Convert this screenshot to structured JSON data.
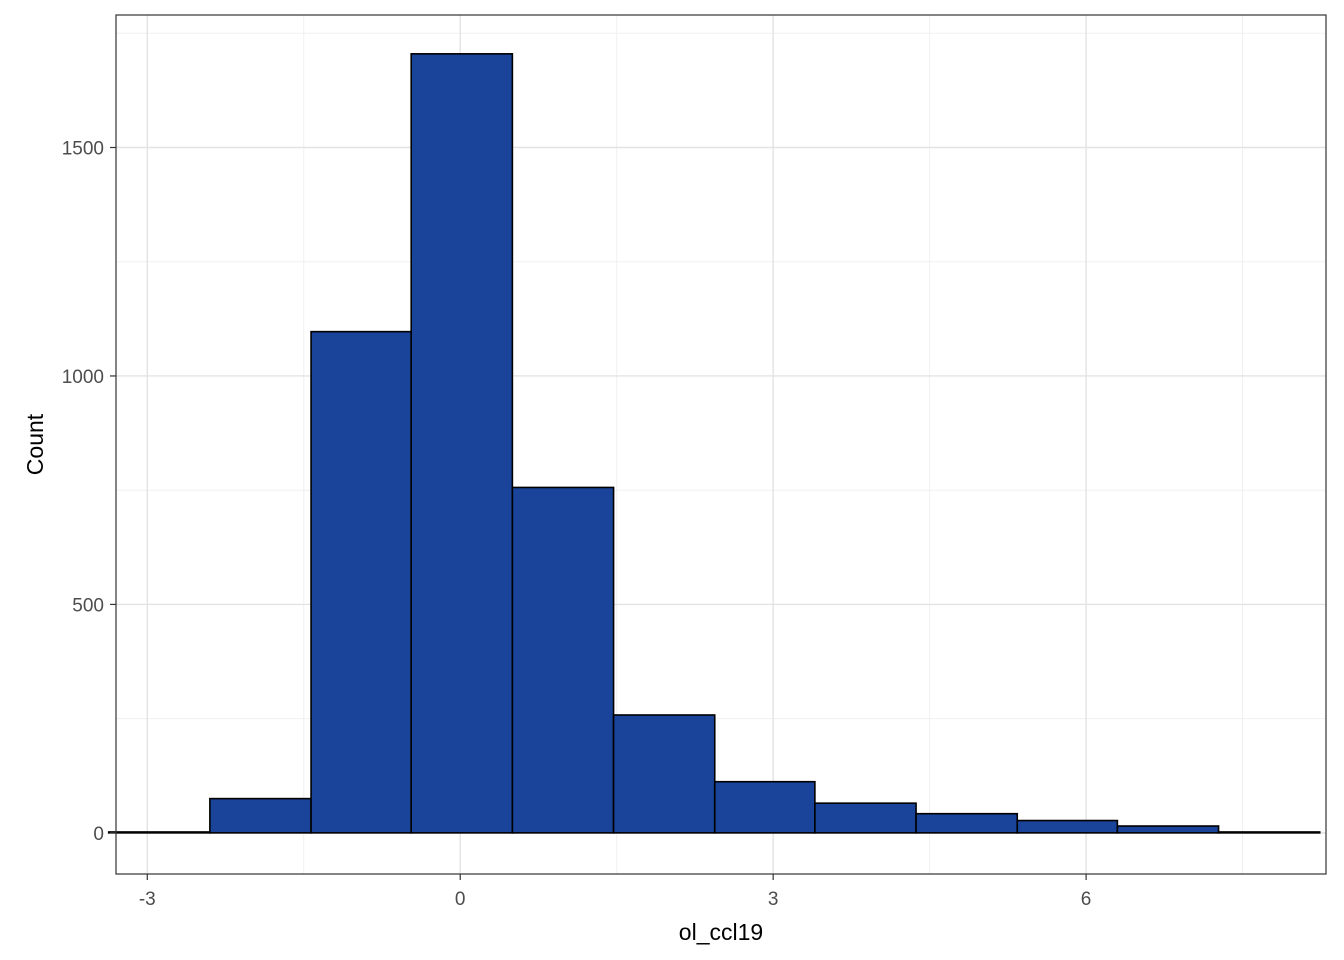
{
  "chart_data": {
    "type": "bar",
    "subtype": "histogram",
    "xlabel": "ol_ccl19",
    "ylabel": "Count",
    "bar_color": "#1a4499",
    "bar_outline": "#000000",
    "grid": true,
    "panel_border": true,
    "xlim": [
      -3.3,
      8.3
    ],
    "ylim": [
      -90,
      1790
    ],
    "x_ticks": [
      -3,
      0,
      3,
      6
    ],
    "x_tick_labels": [
      "-3",
      "0",
      "3",
      "6"
    ],
    "y_ticks": [
      0,
      500,
      1000,
      1500
    ],
    "y_tick_labels": [
      "0",
      "500",
      "1000",
      "1500"
    ],
    "bins": [
      {
        "x0": -3.37,
        "x1": -2.4,
        "count": 2
      },
      {
        "x0": -2.4,
        "x1": -1.43,
        "count": 75
      },
      {
        "x0": -1.43,
        "x1": -0.47,
        "count": 1097
      },
      {
        "x0": -0.47,
        "x1": 0.5,
        "count": 1705
      },
      {
        "x0": 0.5,
        "x1": 1.47,
        "count": 756
      },
      {
        "x0": 1.47,
        "x1": 2.44,
        "count": 258
      },
      {
        "x0": 2.44,
        "x1": 3.4,
        "count": 112
      },
      {
        "x0": 3.4,
        "x1": 4.37,
        "count": 65
      },
      {
        "x0": 4.37,
        "x1": 5.34,
        "count": 42
      },
      {
        "x0": 5.34,
        "x1": 6.3,
        "count": 27
      },
      {
        "x0": 6.3,
        "x1": 7.27,
        "count": 15
      },
      {
        "x0": 7.27,
        "x1": 8.24,
        "count": 2
      }
    ]
  }
}
